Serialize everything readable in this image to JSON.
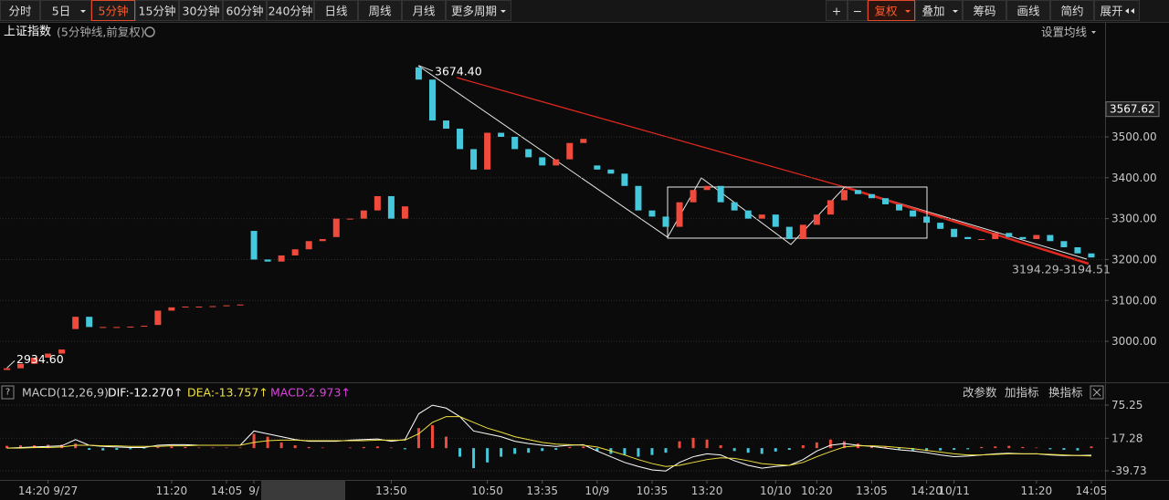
{
  "toolbar": {
    "periods": [
      "分时",
      "5日",
      "5分钟",
      "15分钟",
      "30分钟",
      "60分钟",
      "240分钟",
      "日线",
      "周线",
      "月线",
      "更多周期"
    ],
    "tools": [
      "+",
      "−",
      "复权",
      "叠加",
      "筹码",
      "画线",
      "简约",
      "展开"
    ]
  },
  "header": {
    "title": "上证指数",
    "subtitle": "(5分钟线,前复权)",
    "ma_setting": "设置均线"
  },
  "indicator_buttons": [
    "改参数",
    "加指标",
    "换指标"
  ],
  "chart_data": [
    {
      "type": "candlestick",
      "xlim": [
        -0.5,
        80
      ],
      "ylim": [
        2902,
        3732
      ],
      "yticks": [
        {
          "value": 3000,
          "label": "3000.00"
        },
        {
          "value": 3100,
          "label": "3100.00"
        },
        {
          "value": 3200,
          "label": "3200.00"
        },
        {
          "value": 3300,
          "label": "3300.00"
        },
        {
          "value": 3400,
          "label": "3400.00"
        },
        {
          "value": 3500,
          "label": "3500.00"
        }
      ],
      "marker_price": 3567.62,
      "grid": true,
      "up_color": "#f04a3c",
      "down_color": "#45c8dc",
      "open": [
        2930,
        2934,
        2945,
        2960,
        2970,
        3030,
        3060,
        3035,
        3035,
        3035,
        3036,
        3040,
        3075,
        3083,
        3085,
        3085,
        3086,
        3088,
        3270,
        3200,
        3195,
        3210,
        3225,
        3245,
        3255,
        3300,
        3300,
        3320,
        3355,
        3300,
        3670,
        3640,
        3540,
        3520,
        3470,
        3420,
        3510,
        3500,
        3470,
        3450,
        3430,
        3445,
        3485,
        3430,
        3420,
        3410,
        3380,
        3320,
        3305,
        3280,
        3340,
        3370,
        3380,
        3340,
        3320,
        3300,
        3310,
        3280,
        3250,
        3285,
        3310,
        3345,
        3370,
        3360,
        3350,
        3335,
        3320,
        3305,
        3290,
        3275,
        3255,
        3250,
        3250,
        3265,
        3255,
        3250,
        3260,
        3245,
        3230,
        3215
      ],
      "close": [
        2934,
        2945,
        2960,
        2970,
        2980,
        3060,
        3035,
        3035,
        3035,
        3036,
        3038,
        3075,
        3083,
        3085,
        3085,
        3086,
        3088,
        3090,
        3200,
        3195,
        3210,
        3225,
        3245,
        3250,
        3300,
        3300,
        3320,
        3355,
        3300,
        3330,
        3640,
        3540,
        3520,
        3470,
        3420,
        3510,
        3500,
        3470,
        3450,
        3430,
        3445,
        3485,
        3495,
        3420,
        3410,
        3380,
        3320,
        3305,
        3280,
        3340,
        3370,
        3380,
        3340,
        3320,
        3300,
        3310,
        3280,
        3250,
        3285,
        3310,
        3345,
        3370,
        3360,
        3350,
        3335,
        3320,
        3305,
        3290,
        3275,
        3255,
        3250,
        3250,
        3265,
        3255,
        3250,
        3260,
        3245,
        3230,
        3215,
        3205
      ],
      "annotations": [
        {
          "label": "3674.40",
          "value": 3674.4
        },
        {
          "label": "2934.60",
          "value": 2934.6
        },
        {
          "label": "3194.29-3194.51"
        }
      ]
    },
    {
      "type": "macd",
      "title": "MACD(12,26,9)",
      "xlim": [
        -0.5,
        80
      ],
      "ylim": [
        -54,
        81.6
      ],
      "yticks": [
        75.25,
        17.28,
        -39.73
      ],
      "grid": true,
      "xticks": [
        {
          "value": 3,
          "label": "14:20 9/27"
        },
        {
          "value": 12,
          "label": "11:20"
        },
        {
          "value": 16,
          "label": "14:05"
        },
        {
          "value": 18,
          "label": "9/"
        },
        {
          "value": 28,
          "label": "13:50"
        },
        {
          "value": 35,
          "label": "10:50"
        },
        {
          "value": 39,
          "label": "13:35"
        },
        {
          "value": 43,
          "label": "10/9"
        },
        {
          "value": 47,
          "label": "10:35"
        },
        {
          "value": 51,
          "label": "13:20"
        },
        {
          "value": 56,
          "label": "10/10"
        },
        {
          "value": 59,
          "label": "10:20"
        },
        {
          "value": 63,
          "label": "13:05"
        },
        {
          "value": 67,
          "label": "14:20"
        },
        {
          "value": 69,
          "label": "10/11"
        },
        {
          "value": 75,
          "label": "11:20"
        },
        {
          "value": 79,
          "label": "14:05"
        }
      ],
      "series": [
        {
          "name": "DIF:-12.270↑",
          "type": "line",
          "color": "#ffffff",
          "values": [
            0,
            1,
            2,
            3,
            4,
            15,
            5,
            3,
            2,
            1,
            1,
            5,
            6,
            6,
            5,
            5,
            5,
            5,
            30,
            25,
            20,
            15,
            12,
            12,
            12,
            14,
            15,
            16,
            12,
            15,
            60,
            75,
            70,
            55,
            30,
            25,
            20,
            12,
            8,
            5,
            3,
            5,
            6,
            -5,
            -15,
            -25,
            -32,
            -38,
            -40,
            -25,
            -15,
            -10,
            -12,
            -22,
            -30,
            -35,
            -32,
            -30,
            -20,
            -5,
            5,
            8,
            5,
            3,
            0,
            -3,
            -5,
            -8,
            -12,
            -15,
            -14,
            -12,
            -10,
            -9,
            -10,
            -10,
            -12,
            -13,
            -13,
            -12.27
          ]
        },
        {
          "name": "DEA:-13.757↑",
          "type": "line",
          "color": "#f0e040",
          "values": [
            0,
            0,
            1,
            1,
            2,
            5,
            5,
            4,
            4,
            3,
            3,
            3,
            4,
            4,
            5,
            5,
            5,
            5,
            10,
            13,
            14,
            14,
            13,
            13,
            13,
            13,
            13,
            14,
            14,
            14,
            25,
            45,
            55,
            55,
            45,
            35,
            28,
            20,
            15,
            10,
            7,
            6,
            5,
            2,
            -5,
            -12,
            -20,
            -27,
            -32,
            -30,
            -25,
            -20,
            -17,
            -18,
            -22,
            -27,
            -29,
            -30,
            -25,
            -15,
            -6,
            2,
            4,
            4,
            3,
            1,
            -1,
            -4,
            -7,
            -10,
            -12,
            -12,
            -11,
            -10,
            -10,
            -10,
            -11,
            -12,
            -13,
            -13.757
          ]
        },
        {
          "name": "MACD:2.973↑",
          "type": "bar",
          "color": "#e040e0",
          "up_color": "#f04a3c",
          "down_color": "#45c8dc",
          "values": [
            4,
            5,
            5,
            6,
            6,
            8,
            -3,
            -4,
            -3,
            -2,
            -1,
            2,
            3,
            2,
            1,
            1,
            1,
            1,
            25,
            20,
            10,
            5,
            2,
            1,
            0,
            1,
            2,
            3,
            1,
            -2,
            35,
            40,
            20,
            -15,
            -35,
            -25,
            -15,
            -10,
            -8,
            -5,
            -3,
            2,
            3,
            -5,
            -10,
            -12,
            -15,
            -12,
            -8,
            12,
            18,
            15,
            5,
            -5,
            -8,
            -10,
            -6,
            -3,
            5,
            10,
            15,
            12,
            8,
            3,
            2,
            -2,
            -4,
            -5,
            -4,
            -3,
            -2,
            2,
            3,
            4,
            2,
            1,
            -2,
            -3,
            -4,
            2.973
          ]
        }
      ]
    }
  ]
}
